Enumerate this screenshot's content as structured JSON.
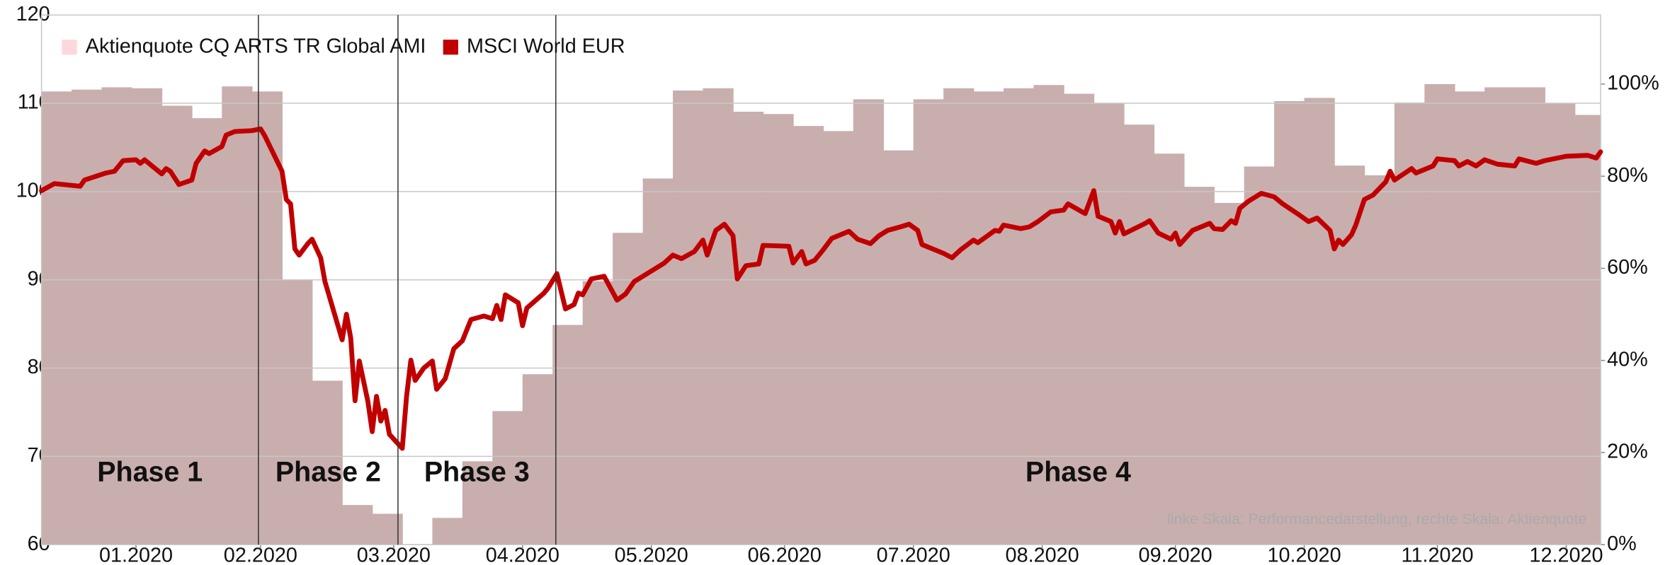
{
  "chart_data": {
    "type": "area_line",
    "legend": "top-left",
    "grid": true,
    "xlim": [
      0,
      363
    ],
    "xticks": [
      {
        "value": 22,
        "label": "01.2020"
      },
      {
        "value": 51,
        "label": "02.2020"
      },
      {
        "value": 82,
        "label": "03.2020"
      },
      {
        "value": 112,
        "label": "04.2020"
      },
      {
        "value": 142,
        "label": "05.2020"
      },
      {
        "value": 173,
        "label": "06.2020"
      },
      {
        "value": 203,
        "label": "07.2020"
      },
      {
        "value": 233,
        "label": "08.2020"
      },
      {
        "value": 264,
        "label": "09.2020"
      },
      {
        "value": 294,
        "label": "10.2020"
      },
      {
        "value": 325,
        "label": "11.2020"
      },
      {
        "value": 355,
        "label": "12.2020"
      }
    ],
    "ylim": [
      60,
      120
    ],
    "yticks": [
      60,
      70,
      80,
      90,
      100,
      110,
      120
    ],
    "y2lim": [
      0,
      115
    ],
    "y2ticks": [
      {
        "value": 0,
        "label": "0%"
      },
      {
        "value": 20,
        "label": "20%"
      },
      {
        "value": 40,
        "label": "40%"
      },
      {
        "value": 60,
        "label": "60%"
      },
      {
        "value": 80,
        "label": "80%"
      },
      {
        "value": 100,
        "label": "100%"
      }
    ],
    "phases": [
      "Phase 1",
      "Phase 2",
      "Phase 3",
      "Phase 4"
    ],
    "phase_boundaries": [
      50.5,
      83,
      119.75
    ],
    "annotation": "linke Skala: Performancedarstellung, rechte Skala: Aktienquote",
    "series": [
      {
        "name": "Aktienquote CQ ARTS TR Global AMI",
        "type": "step_area",
        "axis": "y2",
        "color": "#c9aeae",
        "legend_color": "#fcd8dc",
        "x": [
          0,
          7,
          14,
          21,
          28,
          35,
          42,
          49,
          56,
          63,
          70,
          77,
          84,
          91,
          98,
          105,
          112,
          119,
          126,
          133,
          140,
          147,
          154,
          161,
          168,
          175,
          182,
          189,
          196,
          203,
          210,
          217,
          224,
          231,
          238,
          245,
          252,
          259,
          266,
          273,
          280,
          287,
          294,
          301,
          308,
          315,
          322,
          329,
          336,
          343,
          350,
          357
        ],
        "values": [
          98.4,
          98.8,
          99.3,
          99.1,
          95.3,
          92.6,
          99.5,
          98.4,
          57.4,
          35.6,
          8.6,
          6.7,
          0,
          5.8,
          18.1,
          29,
          37,
          47.7,
          57.2,
          67.7,
          79.5,
          98.6,
          99.1,
          94,
          93.5,
          90.9,
          89.8,
          96.7,
          85.6,
          96.7,
          99.1,
          98.4,
          99.1,
          99.8,
          97.9,
          95.8,
          91.2,
          84.9,
          77.7,
          74.2,
          82.1,
          96.3,
          97,
          82.3,
          80.2,
          96,
          100,
          98.4,
          99.3,
          99.3,
          95.8,
          93.3
        ]
      },
      {
        "name": "MSCI World EUR",
        "type": "line",
        "color": "#c00000",
        "x": [
          0,
          3,
          9,
          10,
          15,
          17,
          19,
          22,
          23,
          24,
          28,
          29,
          30,
          32,
          35,
          36,
          38,
          39,
          42,
          43,
          45,
          49,
          51,
          52,
          56,
          57,
          58,
          59,
          60,
          62,
          63,
          65,
          66,
          68,
          70,
          71,
          72,
          73,
          74,
          76,
          77,
          78,
          79,
          80,
          81,
          84,
          85,
          86,
          87,
          89,
          91,
          92,
          94,
          96,
          98,
          100,
          103,
          105,
          106,
          107,
          108,
          111,
          112,
          113,
          117,
          118,
          120,
          122,
          124,
          125,
          126,
          128,
          131,
          134,
          136,
          138,
          140,
          142,
          145,
          147,
          149,
          152,
          154,
          155,
          157,
          159,
          161,
          162,
          164,
          167,
          168,
          174,
          175,
          177,
          178,
          180,
          182,
          184,
          188,
          190,
          193,
          195,
          197,
          200,
          202,
          204,
          205,
          210,
          212,
          214,
          217,
          218,
          222,
          223,
          224,
          228,
          230,
          232,
          235,
          238,
          239,
          243,
          245,
          246,
          249,
          250,
          251,
          252,
          257,
          258,
          260,
          263,
          264,
          265,
          268,
          272,
          273,
          275,
          277,
          278,
          279,
          281,
          284,
          287,
          289,
          293,
          295,
          297,
          300,
          301,
          302,
          303,
          305,
          306,
          308,
          310,
          313,
          314,
          315,
          319,
          320,
          324,
          325,
          329,
          330,
          332,
          334,
          336,
          339,
          343,
          344,
          348,
          350,
          355,
          360,
          362,
          363
        ],
        "values": [
          100.1,
          100.9,
          100.6,
          101.3,
          102.1,
          102.3,
          103.5,
          103.6,
          103.2,
          103.6,
          102.0,
          102.6,
          102.3,
          100.8,
          101.3,
          103.2,
          104.6,
          104.3,
          105.1,
          106.4,
          106.8,
          106.9,
          107.1,
          106.3,
          102.3,
          99.1,
          98.6,
          93.5,
          92.8,
          94.1,
          94.6,
          92.5,
          89.8,
          86.5,
          83.2,
          86.1,
          83.4,
          76.3,
          80.8,
          76.2,
          72.8,
          76.8,
          74.0,
          75.2,
          72.5,
          70.9,
          76.8,
          80.9,
          78.6,
          80.0,
          80.8,
          77.6,
          78.8,
          82.2,
          83.1,
          85.5,
          85.9,
          85.6,
          87.1,
          85.5,
          88.3,
          87.4,
          84.8,
          86.8,
          88.5,
          89.1,
          90.7,
          86.7,
          87.2,
          88.5,
          88.3,
          90.1,
          90.4,
          87.7,
          88.4,
          89.8,
          90.4,
          91.0,
          91.9,
          92.8,
          92.4,
          93.2,
          94.5,
          92.8,
          95.6,
          96.3,
          95.0,
          90.1,
          91.6,
          91.8,
          93.9,
          93.8,
          91.9,
          93.2,
          91.8,
          92.2,
          93.4,
          94.7,
          95.5,
          94.6,
          94.1,
          95.0,
          95.6,
          96.0,
          96.3,
          95.6,
          94.0,
          93.0,
          92.5,
          93.4,
          94.5,
          94.2,
          95.6,
          95.5,
          96.2,
          95.8,
          96.0,
          96.6,
          97.7,
          97.9,
          98.6,
          97.5,
          100.1,
          97.2,
          96.6,
          95.3,
          96.6,
          95.2,
          96.4,
          96.7,
          95.3,
          94.6,
          95.3,
          94.0,
          95.6,
          96.4,
          95.8,
          95.7,
          96.7,
          96.4,
          98.1,
          98.9,
          99.8,
          99.4,
          98.6,
          97.3,
          96.6,
          97.0,
          95.6,
          93.5,
          94.5,
          94.0,
          95.1,
          96.2,
          99.1,
          99.6,
          101.1,
          102.3,
          101.3,
          102.6,
          102.1,
          102.9,
          103.7,
          103.5,
          102.9,
          103.4,
          102.9,
          103.6,
          103.1,
          102.9,
          103.7,
          103.2,
          103.5,
          104.0,
          104.1,
          103.8,
          104.5
        ]
      }
    ]
  }
}
